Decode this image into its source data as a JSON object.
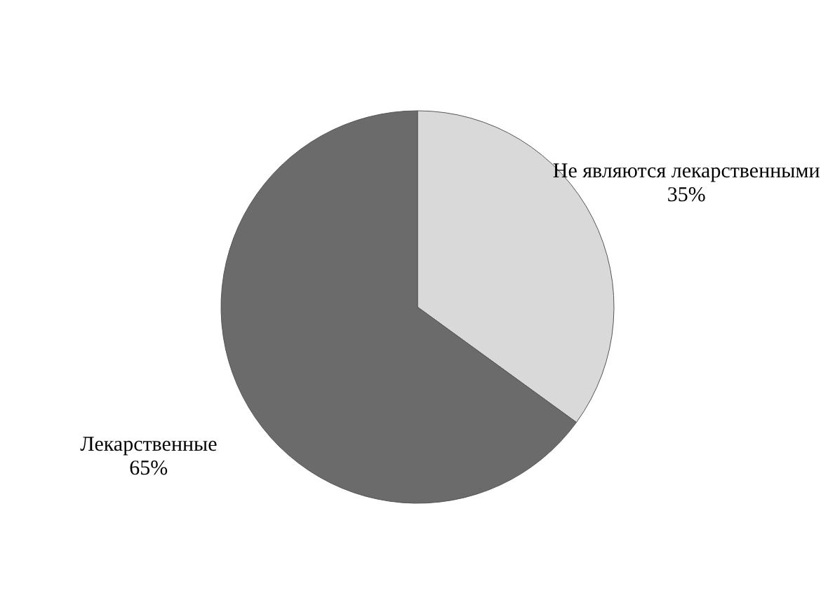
{
  "chart_data": {
    "type": "pie",
    "categories": [
      "Не являются лекарственными",
      "Лекарственные"
    ],
    "values": [
      35,
      65
    ],
    "value_labels": [
      "35%",
      "65%"
    ],
    "colors": [
      "#d9d9d9",
      "#6b6b6b"
    ],
    "legend": false
  }
}
